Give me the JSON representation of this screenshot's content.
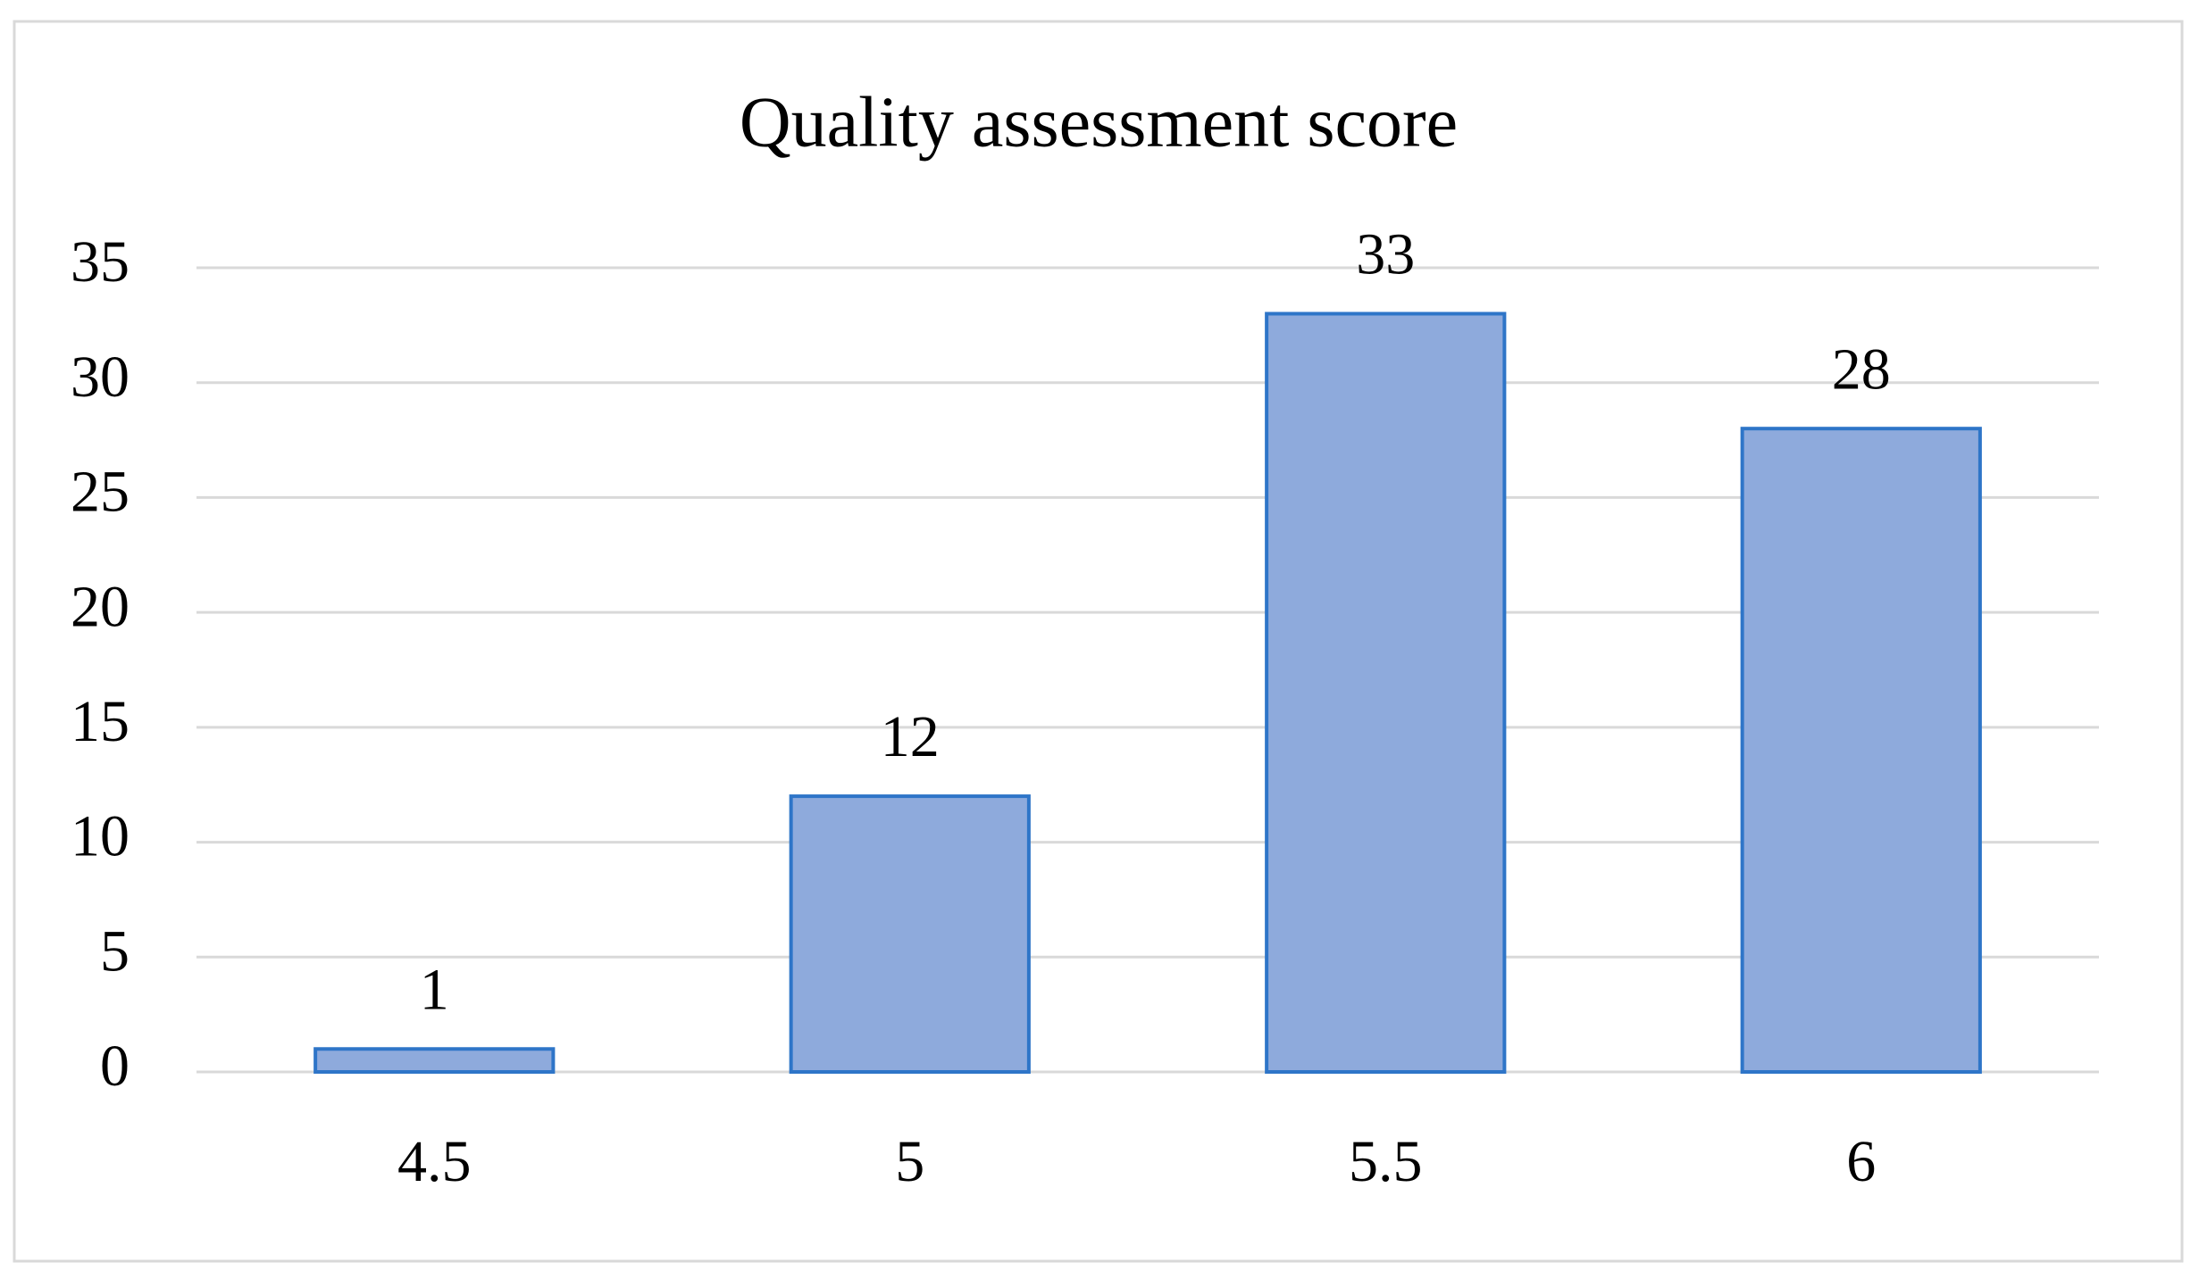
{
  "chart_data": {
    "type": "bar",
    "title": "Quality assessment score",
    "categories": [
      "4.5",
      "5",
      "5.5",
      "6"
    ],
    "values": [
      1,
      12,
      33,
      28
    ],
    "color": "#8eaadc",
    "edge_color": "#2e75c8",
    "ylim": [
      0,
      35
    ],
    "yticks": [
      0,
      5,
      10,
      15,
      20,
      25,
      30,
      35
    ],
    "grid": true
  }
}
